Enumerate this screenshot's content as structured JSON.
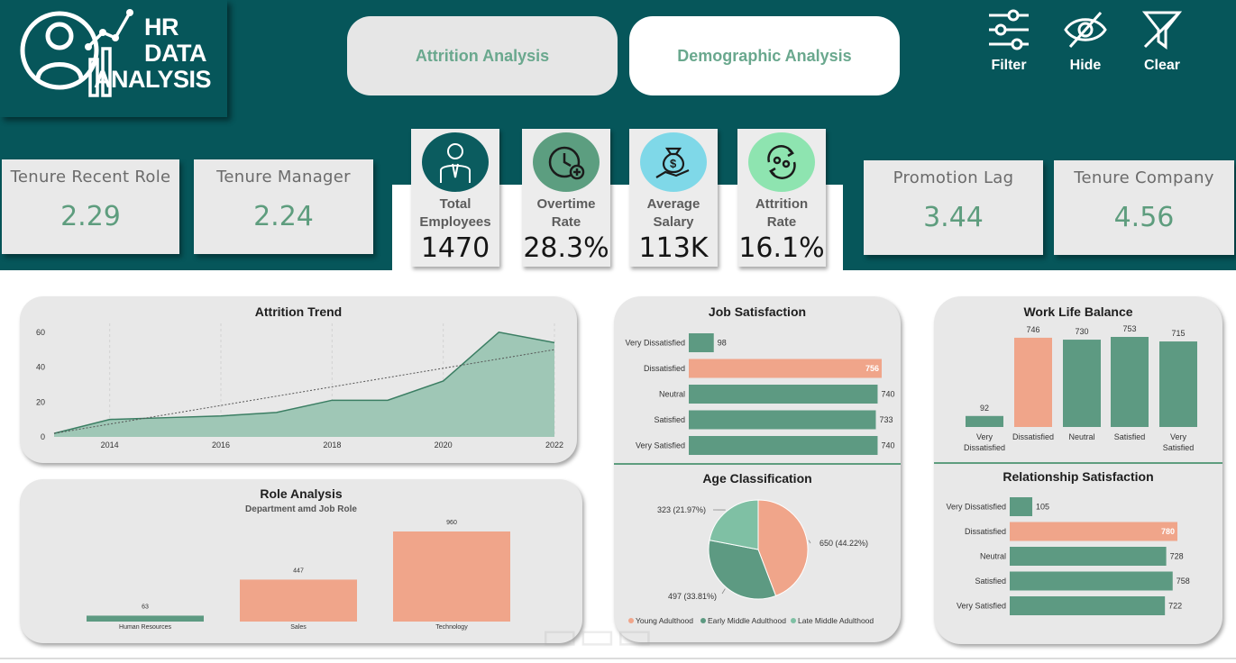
{
  "header": {
    "logo_line1": "HR",
    "logo_line2": "DATA",
    "logo_line3": "ANALYSIS",
    "nav": [
      {
        "label": "Attrition Analysis"
      },
      {
        "label": "Demographic Analysis"
      }
    ],
    "tools": [
      {
        "label": "Filter",
        "icon": "filter-sliders-icon"
      },
      {
        "label": "Hide",
        "icon": "eye-off-icon"
      },
      {
        "label": "Clear",
        "icon": "filter-off-icon"
      }
    ]
  },
  "kpis_left": [
    {
      "label": "Tenure Recent Role",
      "value": "2.29"
    },
    {
      "label": "Tenure Manager",
      "value": "2.24"
    }
  ],
  "kpis_center": [
    {
      "label_1": "Total",
      "label_2": "Employees",
      "value": "1470",
      "icon": "employee-icon",
      "icon_bg": "#0b5c5f"
    },
    {
      "label_1": "Overtime",
      "label_2": "Rate",
      "value": "28.3%",
      "icon": "clock-icon",
      "icon_bg": "#5c9e80"
    },
    {
      "label_1": "Average",
      "label_2": "Salary",
      "value": "113K",
      "icon": "money-bag-icon",
      "icon_bg": "#7fd8e8"
    },
    {
      "label_1": "Attrition",
      "label_2": "Rate",
      "value": "16.1%",
      "icon": "attrition-icon",
      "icon_bg": "#8ee4b0"
    }
  ],
  "kpis_right": [
    {
      "label": "Promotion Lag",
      "value": "3.44"
    },
    {
      "label": "Tenure Company",
      "value": "4.56"
    }
  ],
  "colors": {
    "teal": "#06565a",
    "green": "#5d9a82",
    "salmon": "#f0a58a",
    "area": "#9fc7b6",
    "line": "#3b7e63"
  },
  "chart_data": [
    {
      "id": "attrition_trend",
      "type": "area",
      "title": "Attrition Trend",
      "x": [
        2013,
        2014,
        2015,
        2016,
        2017,
        2018,
        2019,
        2020,
        2021,
        2022
      ],
      "y": [
        2,
        10,
        11,
        12,
        14,
        21,
        21,
        32,
        60,
        54
      ],
      "trend": [
        2,
        50
      ],
      "xticks": [
        "2014",
        "2016",
        "2018",
        "2020",
        "2022"
      ],
      "yticks": [
        "0",
        "20",
        "40",
        "60"
      ],
      "ylim": [
        0,
        64
      ]
    },
    {
      "id": "role_analysis",
      "type": "bar",
      "title": "Role Analysis",
      "subtitle": "Department amd Job Role",
      "categories": [
        "Human Resources",
        "Sales",
        "Technology"
      ],
      "values": [
        63,
        447,
        960
      ],
      "value_labels": [
        "63",
        "447",
        "960"
      ],
      "ylim": [
        0,
        960
      ]
    },
    {
      "id": "job_satisfaction",
      "type": "bar",
      "orientation": "horizontal",
      "title": "Job Satisfaction",
      "categories": [
        "Very Dissatisfied",
        "Dissatisfied",
        "Neutral",
        "Satisfied",
        "Very Satisfied"
      ],
      "values": [
        98,
        756,
        740,
        733,
        740
      ],
      "value_labels": [
        "98",
        "756",
        "740",
        "733",
        "740"
      ],
      "highlight": 1
    },
    {
      "id": "age_classification",
      "type": "pie",
      "title": "Age Classification",
      "slices": [
        {
          "name": "Young Adulthood",
          "value": 650,
          "label": "650 (44.22%)",
          "color": "#f0a58a"
        },
        {
          "name": "Early Middle Adulthood",
          "value": 497,
          "label": "497 (33.81%)",
          "color": "#5d9a82"
        },
        {
          "name": "Late Middle Adulthood",
          "value": 323,
          "label": "323 (21.97%)",
          "color": "#7fc0a4"
        }
      ]
    },
    {
      "id": "work_life_balance",
      "type": "bar",
      "title": "Work Life Balance",
      "categories": [
        [
          "Very",
          "Dissatisfied"
        ],
        [
          "Dissatisfied"
        ],
        [
          "Neutral"
        ],
        [
          "Satisfied"
        ],
        [
          "Very",
          "Satisfied"
        ]
      ],
      "values": [
        92,
        746,
        730,
        753,
        715
      ],
      "value_labels": [
        "92",
        "746",
        "730",
        "753",
        "715"
      ],
      "highlight": 1
    },
    {
      "id": "relationship_satisfaction",
      "type": "bar",
      "orientation": "horizontal",
      "title": "Relationship Satisfaction",
      "categories": [
        "Very Dissatisfied",
        "Dissatisfied",
        "Neutral",
        "Satisfied",
        "Very Satisfied"
      ],
      "values": [
        105,
        780,
        728,
        758,
        722
      ],
      "value_labels": [
        "105",
        "780",
        "728",
        "758",
        "722"
      ],
      "highlight": 1
    }
  ]
}
